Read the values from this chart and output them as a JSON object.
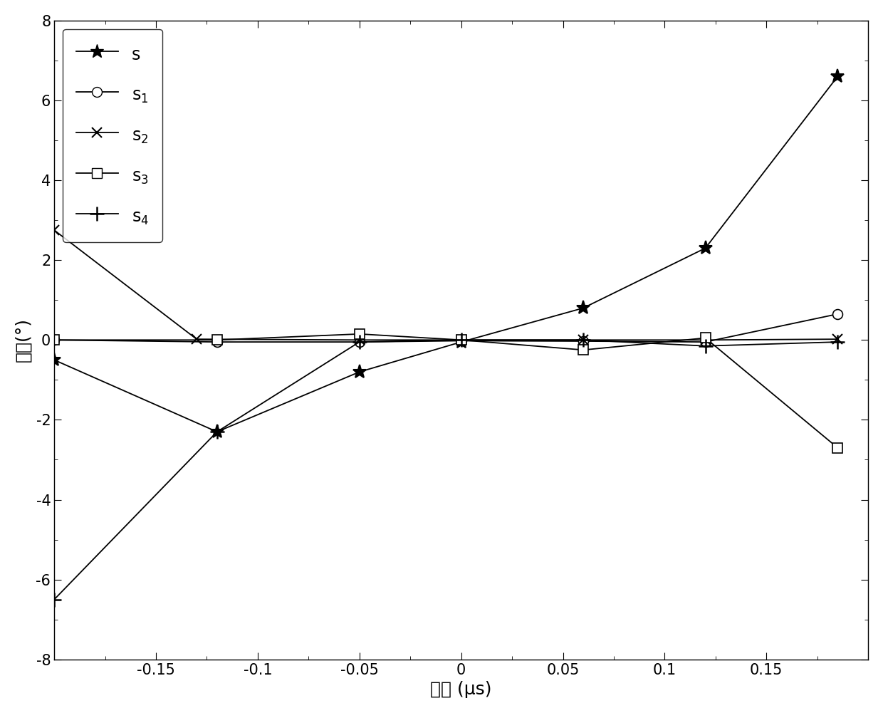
{
  "title": "",
  "xlabel": "延时 (μs)",
  "ylabel": "相位(°)",
  "xlim": [
    -0.2,
    0.2
  ],
  "ylim": [
    -8,
    8
  ],
  "xticks": [
    -0.15,
    -0.1,
    -0.05,
    0,
    0.05,
    0.1,
    0.15
  ],
  "yticks": [
    -8,
    -6,
    -4,
    -2,
    0,
    2,
    4,
    6,
    8
  ],
  "background_color": "#ffffff",
  "series": [
    {
      "name": "s",
      "marker": "*",
      "markersize": 14,
      "x": [
        -0.2,
        -0.12,
        -0.05,
        0.0,
        0.06,
        0.12,
        0.185
      ],
      "y": [
        -0.5,
        -2.3,
        -0.8,
        -0.05,
        0.8,
        2.3,
        6.6
      ]
    },
    {
      "name": "s_1",
      "marker": "o",
      "markersize": 10,
      "x": [
        -0.2,
        -0.12,
        -0.05,
        0.0,
        0.06,
        0.12,
        0.185
      ],
      "y": [
        0.0,
        -0.05,
        -0.05,
        -0.02,
        -0.03,
        -0.05,
        0.65
      ]
    },
    {
      "name": "s_2",
      "marker": "x",
      "markersize": 10,
      "x": [
        -0.2,
        -0.13,
        -0.05,
        0.0,
        0.06,
        0.12,
        0.185
      ],
      "y": [
        2.75,
        0.02,
        0.0,
        0.0,
        0.0,
        0.0,
        0.02
      ]
    },
    {
      "name": "s_3",
      "marker": "s",
      "markersize": 10,
      "x": [
        -0.2,
        -0.12,
        -0.05,
        0.0,
        0.06,
        0.12,
        0.185
      ],
      "y": [
        0.0,
        0.0,
        0.15,
        0.0,
        -0.25,
        0.05,
        -2.7
      ]
    },
    {
      "name": "s_4",
      "marker": "+",
      "markersize": 14,
      "x": [
        -0.2,
        -0.12,
        -0.05,
        0.0,
        0.06,
        0.12,
        0.185
      ],
      "y": [
        -6.5,
        -2.3,
        -0.05,
        0.0,
        0.0,
        -0.15,
        -0.05
      ]
    }
  ],
  "legend_labels": [
    "s",
    "s$_1$",
    "s$_2$",
    "s$_3$",
    "s$_4$"
  ],
  "fontsize_axis": 18,
  "fontsize_tick": 15,
  "fontsize_legend": 17
}
